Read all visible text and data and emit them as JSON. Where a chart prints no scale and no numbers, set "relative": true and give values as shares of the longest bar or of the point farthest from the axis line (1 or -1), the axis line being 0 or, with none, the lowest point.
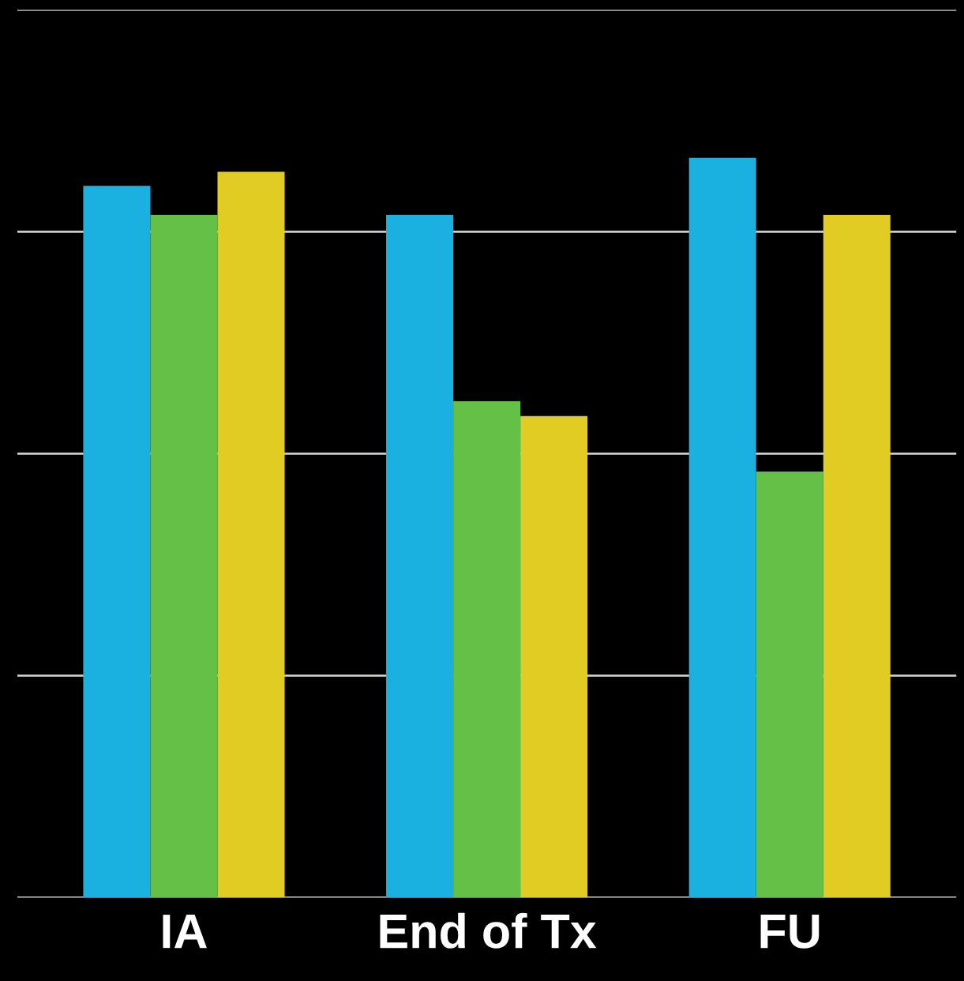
{
  "chart_data": {
    "type": "bar",
    "relative": true,
    "grid": "y",
    "tick_labels": "x",
    "categories": [
      "IA",
      "End of Tx",
      "FU"
    ],
    "series": [
      {
        "color": "#1ab0e0",
        "values": [
          0.962,
          0.923,
          1
        ]
      },
      {
        "color": "#64c046",
        "values": [
          0.923,
          0.671,
          0.576
        ]
      },
      {
        "color": "#e0cc22",
        "values": [
          0.981,
          0.651,
          0.923
        ]
      }
    ]
  }
}
